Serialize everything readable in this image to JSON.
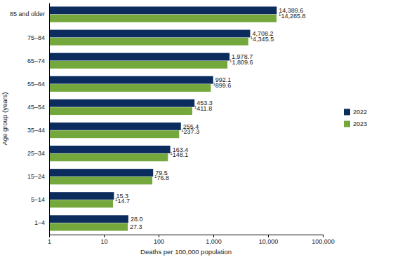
{
  "chart_data": {
    "type": "bar",
    "orientation": "horizontal",
    "log": "x",
    "grid": false,
    "legend": "right",
    "data_labels": true,
    "x_label": "Deaths per 100,000 population",
    "y_label": "Age group (years)",
    "categories": [
      "85 and older",
      "75–84",
      "65–74",
      "55–64",
      "45–54",
      "35–44",
      "25–34",
      "15–24",
      "5–14",
      "1–4"
    ],
    "series": [
      {
        "name": "2022",
        "color": "#0b2c5d",
        "values": [
          14389.6,
          4708.2,
          1978.7,
          992.1,
          453.3,
          255.4,
          163.4,
          79.5,
          15.3,
          28.0
        ],
        "value_labels": [
          "14,389.6",
          "4,708.2",
          "1,978.7",
          "992.1",
          "453.3",
          "255.4",
          "163.4",
          "79.5",
          "15.3",
          "28.0"
        ]
      },
      {
        "name": "2023",
        "color": "#74a83c",
        "values": [
          14285.8,
          4345.5,
          1809.6,
          899.6,
          411.8,
          237.3,
          148.1,
          76.8,
          14.7,
          27.3
        ],
        "value_labels": [
          "14,285.8",
          "4,345.5",
          "1,809.6",
          "899.6",
          "411.8",
          "237.3",
          "148.1",
          "76.8",
          "14.7",
          "27.3"
        ],
        "value_notes": [
          "1",
          "1",
          "1",
          "1",
          "1",
          "1",
          "1",
          "1",
          "1",
          null
        ]
      }
    ],
    "xlim": [
      1,
      100000
    ],
    "xticks": [
      1,
      10,
      100,
      {
        "value": 1000,
        "label": "1,000"
      },
      {
        "value": 10000,
        "label": "10,000"
      },
      {
        "value": 100000,
        "label": "100,000"
      }
    ]
  }
}
